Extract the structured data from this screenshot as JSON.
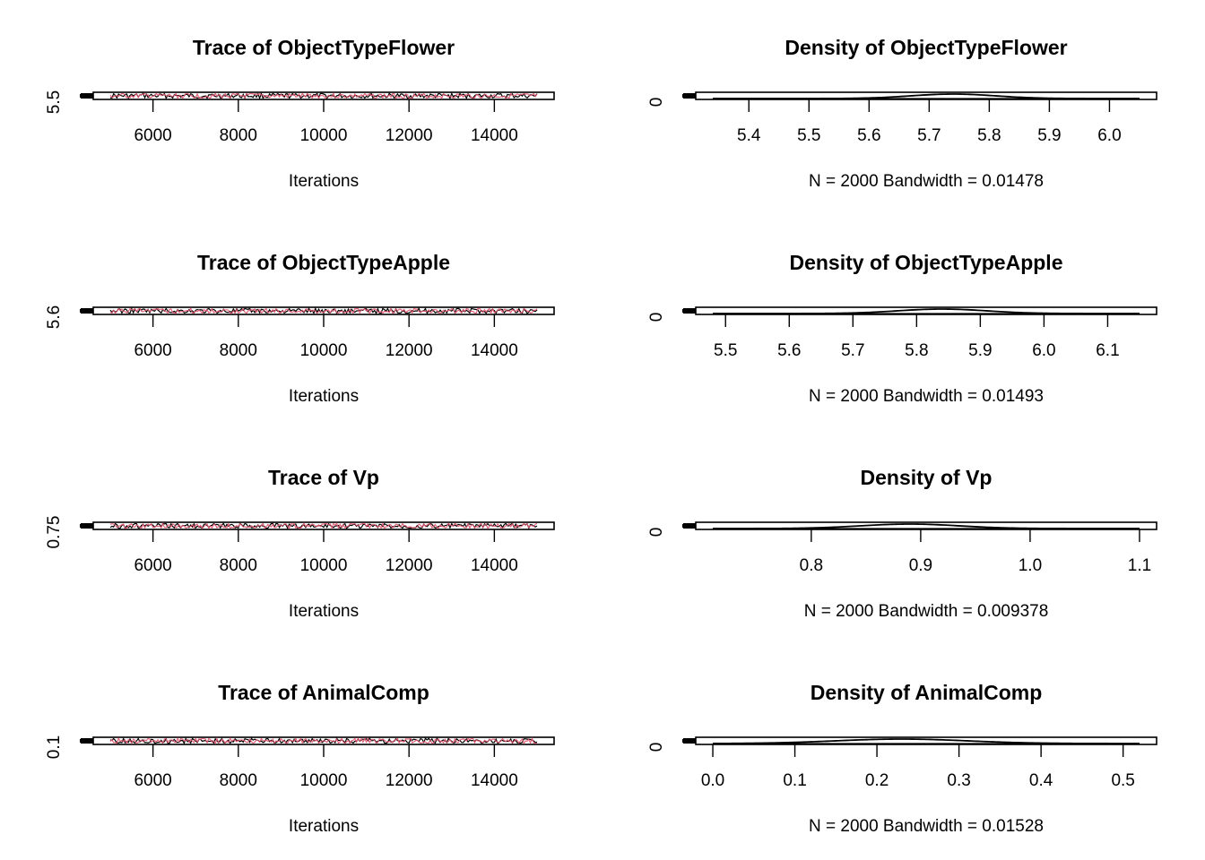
{
  "chart_data": [
    {
      "type": "line",
      "title": "Trace of ObjectTypeFlower",
      "xlabel": "Iterations",
      "x_ticks": [
        "6000",
        "8000",
        "10000",
        "12000",
        "14000"
      ],
      "y_ticks": [
        "5.5"
      ],
      "x_range": [
        5000,
        15000
      ],
      "series_colors": [
        "#000000",
        "#df536b"
      ]
    },
    {
      "type": "line",
      "title": "Density of ObjectTypeFlower",
      "xlabel": "N = 2000   Bandwidth = 0.01478",
      "x_ticks": [
        "5.4",
        "5.5",
        "5.6",
        "5.7",
        "5.8",
        "5.9",
        "6.0"
      ],
      "y_ticks": [
        "0"
      ],
      "x_range": [
        5.34,
        6.05
      ],
      "peak_x": 5.74,
      "peak_width": 0.07,
      "series_colors": [
        "#000000"
      ]
    },
    {
      "type": "line",
      "title": "Trace of ObjectTypeApple",
      "xlabel": "Iterations",
      "x_ticks": [
        "6000",
        "8000",
        "10000",
        "12000",
        "14000"
      ],
      "y_ticks": [
        "5.6"
      ],
      "x_range": [
        5000,
        15000
      ],
      "series_colors": [
        "#000000",
        "#df536b"
      ]
    },
    {
      "type": "line",
      "title": "Density of ObjectTypeApple",
      "xlabel": "N = 2000   Bandwidth = 0.01493",
      "x_ticks": [
        "5.5",
        "5.6",
        "5.7",
        "5.8",
        "5.9",
        "6.0",
        "6.1"
      ],
      "y_ticks": [
        "0"
      ],
      "x_range": [
        5.48,
        6.15
      ],
      "peak_x": 5.84,
      "peak_width": 0.07,
      "series_colors": [
        "#000000"
      ]
    },
    {
      "type": "line",
      "title": "Trace of Vp",
      "xlabel": "Iterations",
      "x_ticks": [
        "6000",
        "8000",
        "10000",
        "12000",
        "14000"
      ],
      "y_ticks": [
        "0.75"
      ],
      "x_range": [
        5000,
        15000
      ],
      "series_colors": [
        "#000000",
        "#df536b"
      ]
    },
    {
      "type": "line",
      "title": "Density of Vp",
      "xlabel": "N = 2000   Bandwidth = 0.009378",
      "x_ticks": [
        "0.8",
        "0.9",
        "1.0",
        "1.1"
      ],
      "y_ticks": [
        "0"
      ],
      "x_range": [
        0.71,
        1.1
      ],
      "peak_x": 0.89,
      "peak_width": 0.045,
      "series_colors": [
        "#000000"
      ]
    },
    {
      "type": "line",
      "title": "Trace of AnimalComp",
      "xlabel": "Iterations",
      "x_ticks": [
        "6000",
        "8000",
        "10000",
        "12000",
        "14000"
      ],
      "y_ticks": [
        "0.1"
      ],
      "x_range": [
        5000,
        15000
      ],
      "series_colors": [
        "#000000",
        "#df536b"
      ]
    },
    {
      "type": "line",
      "title": "Density of AnimalComp",
      "xlabel": "N = 2000   Bandwidth = 0.01528",
      "x_ticks": [
        "0.0",
        "0.1",
        "0.2",
        "0.3",
        "0.4",
        "0.5"
      ],
      "y_ticks": [
        "0"
      ],
      "x_range": [
        0.0,
        0.52
      ],
      "peak_x": 0.23,
      "peak_width": 0.08,
      "series_colors": [
        "#000000"
      ]
    }
  ]
}
